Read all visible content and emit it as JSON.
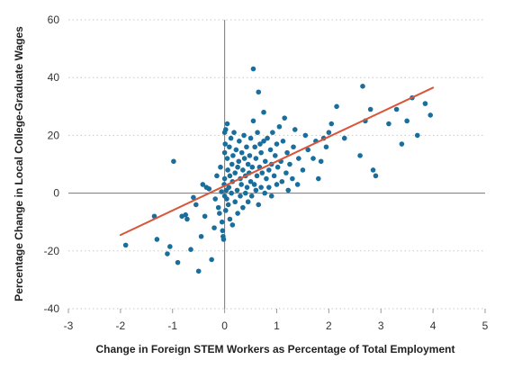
{
  "chart_data": {
    "type": "scatter",
    "xlabel": "Change in Foreign STEM Workers as Percentage of Total Employment",
    "ylabel": "Percentage Change in Local College-Graduate Wages",
    "xlim": [
      -3,
      5
    ],
    "ylim": [
      -40,
      60
    ],
    "x_ticks": [
      -3,
      -2,
      -1,
      0,
      1,
      2,
      3,
      4,
      5
    ],
    "y_ticks": [
      -40,
      -20,
      0,
      20,
      40,
      60
    ],
    "x_tick_labels": [
      "-3",
      "-2",
      "-1",
      "0",
      "1",
      "2",
      "3",
      "4",
      "5"
    ],
    "y_tick_labels": [
      "-40",
      "-20",
      "0",
      "20",
      "40",
      "60"
    ],
    "grid": "horizontal dotted",
    "zero_lines": true,
    "colors": {
      "points": "#1a6e9c",
      "trend_line": "#d9553b",
      "zero_line": "#777777",
      "grid": "#c8c8c8"
    },
    "trend_line": {
      "x": [
        -2.0,
        4.0
      ],
      "y": [
        -14.5,
        36.5
      ]
    },
    "points": [
      [
        -1.9,
        -18
      ],
      [
        -1.35,
        -8
      ],
      [
        -1.3,
        -16
      ],
      [
        -1.1,
        -21
      ],
      [
        -1.05,
        -18.5
      ],
      [
        -0.98,
        11
      ],
      [
        -0.9,
        -24
      ],
      [
        -0.82,
        -8
      ],
      [
        -0.75,
        -7.5
      ],
      [
        -0.72,
        -9
      ],
      [
        -0.65,
        -19.5
      ],
      [
        -0.6,
        -1.5
      ],
      [
        -0.55,
        -4
      ],
      [
        -0.5,
        -27
      ],
      [
        -0.45,
        -15
      ],
      [
        -0.42,
        3
      ],
      [
        -0.38,
        -8
      ],
      [
        -0.35,
        2
      ],
      [
        -0.3,
        1.5
      ],
      [
        -0.25,
        -23
      ],
      [
        -0.2,
        -12
      ],
      [
        -0.18,
        -2
      ],
      [
        -0.15,
        6
      ],
      [
        -0.12,
        -5
      ],
      [
        -0.1,
        -7
      ],
      [
        -0.08,
        9
      ],
      [
        -0.06,
        0.5
      ],
      [
        -0.05,
        -10
      ],
      [
        -0.04,
        -13
      ],
      [
        -0.03,
        -15
      ],
      [
        -0.02,
        -16
      ],
      [
        -0.01,
        3
      ],
      [
        0.0,
        5
      ],
      [
        0.0,
        -1
      ],
      [
        0.0,
        14
      ],
      [
        0.0,
        21
      ],
      [
        0.01,
        17
      ],
      [
        0.02,
        22
      ],
      [
        0.02,
        -6
      ],
      [
        0.03,
        1
      ],
      [
        0.04,
        -2
      ],
      [
        0.05,
        24
      ],
      [
        0.05,
        12
      ],
      [
        0.06,
        8
      ],
      [
        0.07,
        -4
      ],
      [
        0.08,
        2
      ],
      [
        0.09,
        16
      ],
      [
        0.1,
        -9
      ],
      [
        0.1,
        6
      ],
      [
        0.12,
        19
      ],
      [
        0.13,
        0
      ],
      [
        0.14,
        10
      ],
      [
        0.15,
        -11
      ],
      [
        0.15,
        4
      ],
      [
        0.16,
        13
      ],
      [
        0.18,
        21
      ],
      [
        0.2,
        -3
      ],
      [
        0.2,
        7
      ],
      [
        0.22,
        15
      ],
      [
        0.24,
        1
      ],
      [
        0.25,
        -7
      ],
      [
        0.25,
        9
      ],
      [
        0.27,
        11
      ],
      [
        0.28,
        18
      ],
      [
        0.3,
        -1
      ],
      [
        0.3,
        5
      ],
      [
        0.32,
        3
      ],
      [
        0.33,
        14
      ],
      [
        0.35,
        -5
      ],
      [
        0.35,
        8
      ],
      [
        0.37,
        20
      ],
      [
        0.38,
        12
      ],
      [
        0.4,
        0
      ],
      [
        0.4,
        6
      ],
      [
        0.42,
        16
      ],
      [
        0.43,
        2
      ],
      [
        0.45,
        -3
      ],
      [
        0.45,
        10
      ],
      [
        0.47,
        7
      ],
      [
        0.48,
        13
      ],
      [
        0.5,
        4
      ],
      [
        0.5,
        19
      ],
      [
        0.52,
        -1
      ],
      [
        0.53,
        9
      ],
      [
        0.55,
        25
      ],
      [
        0.55,
        43
      ],
      [
        0.57,
        3
      ],
      [
        0.58,
        16
      ],
      [
        0.6,
        1
      ],
      [
        0.6,
        12
      ],
      [
        0.62,
        6
      ],
      [
        0.63,
        21
      ],
      [
        0.65,
        -4
      ],
      [
        0.65,
        35
      ],
      [
        0.67,
        9
      ],
      [
        0.68,
        17
      ],
      [
        0.7,
        2
      ],
      [
        0.7,
        14
      ],
      [
        0.72,
        7
      ],
      [
        0.75,
        18
      ],
      [
        0.75,
        28
      ],
      [
        0.77,
        0
      ],
      [
        0.78,
        11
      ],
      [
        0.8,
        5
      ],
      [
        0.82,
        19
      ],
      [
        0.85,
        8
      ],
      [
        0.85,
        2
      ],
      [
        0.88,
        15
      ],
      [
        0.9,
        -1
      ],
      [
        0.9,
        10
      ],
      [
        0.92,
        21
      ],
      [
        0.95,
        6
      ],
      [
        0.97,
        13
      ],
      [
        1.0,
        3
      ],
      [
        1.0,
        17
      ],
      [
        1.02,
        9
      ],
      [
        1.05,
        23
      ],
      [
        1.08,
        11
      ],
      [
        1.1,
        4
      ],
      [
        1.12,
        18
      ],
      [
        1.15,
        26
      ],
      [
        1.18,
        7
      ],
      [
        1.2,
        14
      ],
      [
        1.22,
        1
      ],
      [
        1.25,
        10
      ],
      [
        1.3,
        5
      ],
      [
        1.32,
        16
      ],
      [
        1.35,
        22
      ],
      [
        1.4,
        3
      ],
      [
        1.42,
        12
      ],
      [
        1.5,
        8
      ],
      [
        1.55,
        20
      ],
      [
        1.6,
        15
      ],
      [
        1.7,
        12
      ],
      [
        1.75,
        18
      ],
      [
        1.8,
        5
      ],
      [
        1.85,
        11
      ],
      [
        1.9,
        19
      ],
      [
        1.95,
        16
      ],
      [
        2.0,
        21
      ],
      [
        2.05,
        24
      ],
      [
        2.15,
        30
      ],
      [
        2.3,
        19
      ],
      [
        2.6,
        13
      ],
      [
        2.65,
        37
      ],
      [
        2.7,
        25
      ],
      [
        2.8,
        29
      ],
      [
        2.85,
        8
      ],
      [
        2.9,
        6
      ],
      [
        3.15,
        24
      ],
      [
        3.3,
        29
      ],
      [
        3.4,
        17
      ],
      [
        3.5,
        25
      ],
      [
        3.6,
        33
      ],
      [
        3.7,
        20
      ],
      [
        3.85,
        31
      ],
      [
        3.95,
        27
      ]
    ]
  }
}
